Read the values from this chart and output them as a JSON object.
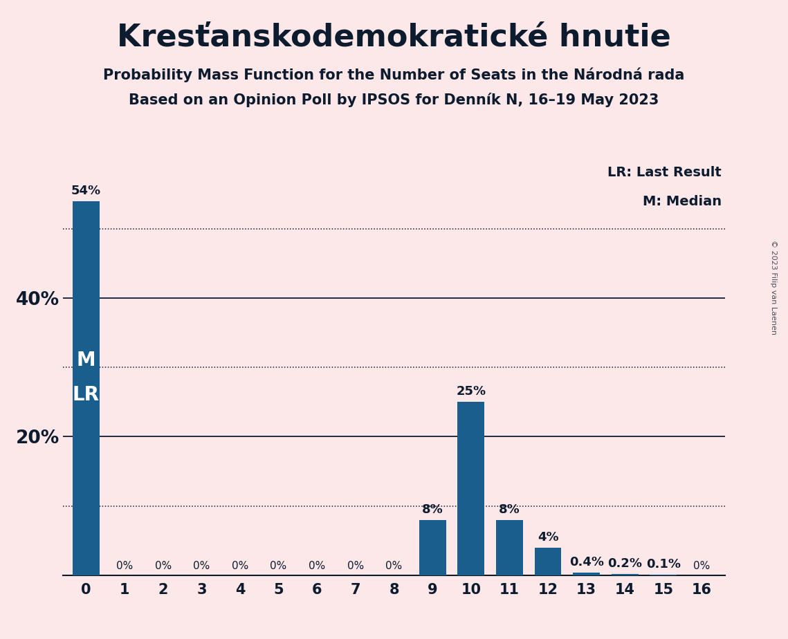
{
  "title": "Kresťanskodemokratické hnutie",
  "subtitle1": "Probability Mass Function for the Number of Seats in the Národná rada",
  "subtitle2": "Based on an Opinion Poll by IPSOS for Denník N, 16–19 May 2023",
  "copyright": "© 2023 Filip van Laenen",
  "categories": [
    0,
    1,
    2,
    3,
    4,
    5,
    6,
    7,
    8,
    9,
    10,
    11,
    12,
    13,
    14,
    15,
    16
  ],
  "values": [
    54,
    0,
    0,
    0,
    0,
    0,
    0,
    0,
    0,
    8,
    25,
    8,
    4,
    0.4,
    0.2,
    0.1,
    0
  ],
  "bar_color": "#1a5e8e",
  "background_color": "#fce8e8",
  "text_color": "#0d1b2e",
  "bar_labels": [
    "54%",
    "0%",
    "0%",
    "0%",
    "0%",
    "0%",
    "0%",
    "0%",
    "0%",
    "8%",
    "25%",
    "8%",
    "4%",
    "0.4%",
    "0.2%",
    "0.1%",
    "0%"
  ],
  "median_label": "M",
  "last_result_label": "LR",
  "legend_lr": "LR: Last Result",
  "legend_m": "M: Median",
  "solid_gridlines": [
    20,
    40
  ],
  "dotted_gridlines": [
    10,
    30,
    50
  ],
  "ylim": [
    0,
    60
  ],
  "title_fontsize": 32,
  "subtitle_fontsize": 15,
  "ytick_fontsize": 19,
  "xtick_fontsize": 15,
  "bar_label_fontsize_nonzero": 13,
  "bar_label_fontsize_zero": 11,
  "legend_fontsize": 14,
  "ml_fontsize": 20
}
